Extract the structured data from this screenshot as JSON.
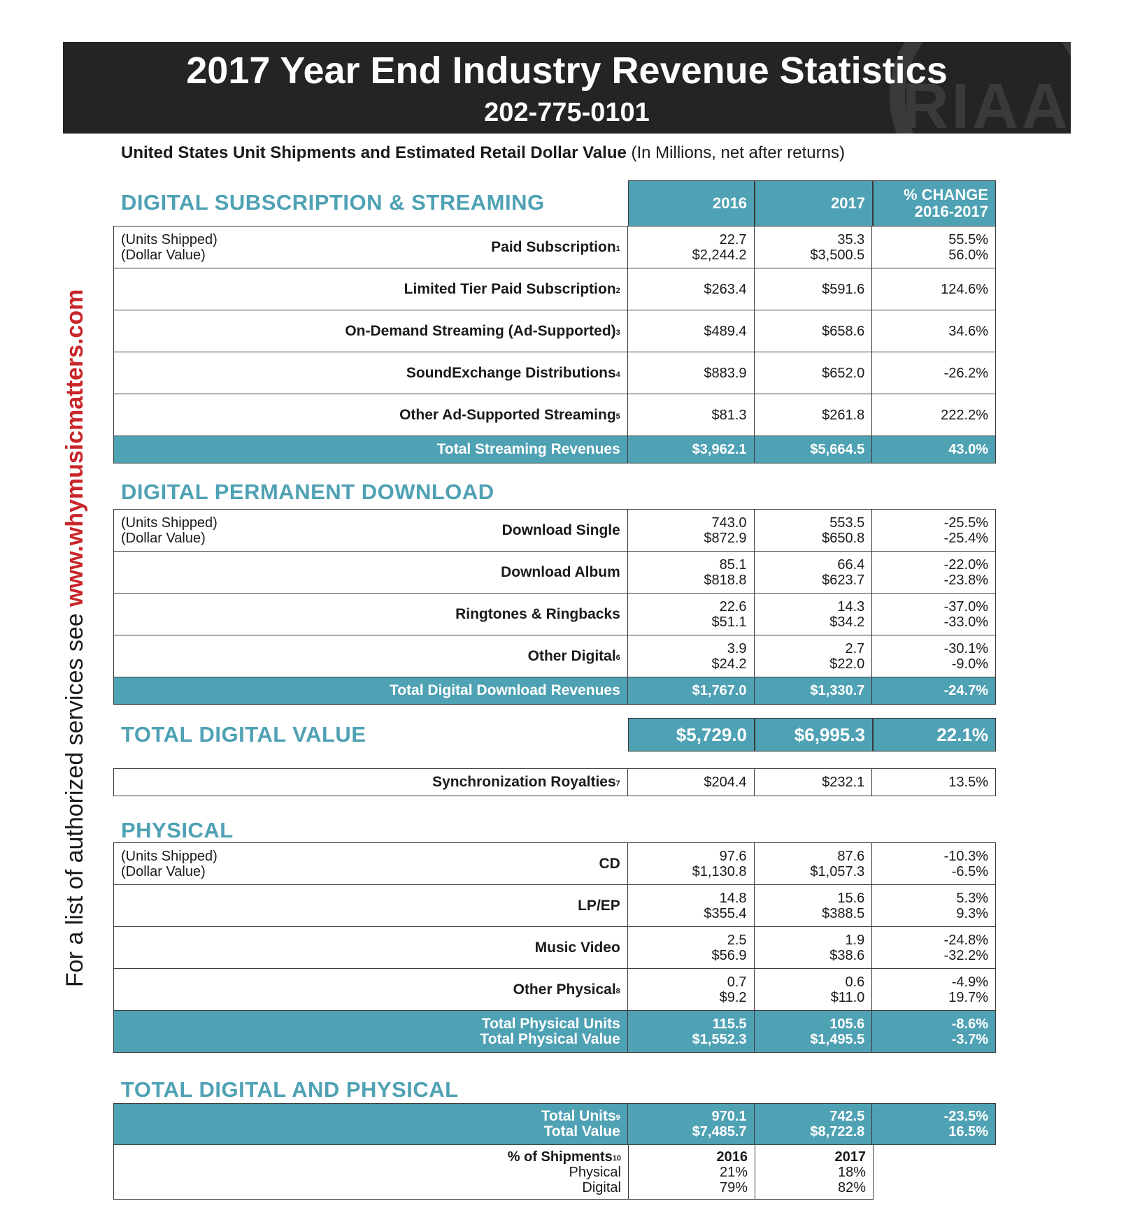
{
  "header": {
    "title": "2017 Year End Industry Revenue Statistics",
    "phone": "202-775-0101",
    "logo_text": "RIAA"
  },
  "subtitle": {
    "bold": "United States Unit Shipments and Estimated Retail Dollar Value",
    "normal": "(In Millions, net after returns)"
  },
  "side_text": {
    "prefix": "For a list of authorized services see ",
    "url": "www.whymusicmatters.com"
  },
  "columns": {
    "y2016": "2016",
    "y2017": "2017",
    "change_l1": "% CHANGE",
    "change_l2": "2016-2017"
  },
  "units_label": {
    "l1": "(Units Shipped)",
    "l2": "(Dollar Value)"
  },
  "streaming": {
    "title": "DIGITAL SUBSCRIPTION & STREAMING",
    "rows": [
      {
        "label": "Paid Subscription",
        "sup": "1",
        "v2016": [
          "22.7",
          "$2,244.2"
        ],
        "v2017": [
          "35.3",
          "$3,500.5"
        ],
        "chg": [
          "55.5%",
          "56.0%"
        ]
      },
      {
        "label": "Limited Tier Paid Subscription",
        "sup": "2",
        "v2016": [
          "$263.4"
        ],
        "v2017": [
          "$591.6"
        ],
        "chg": [
          "124.6%"
        ]
      },
      {
        "label": "On-Demand Streaming (Ad-Supported)",
        "sup": "3",
        "v2016": [
          "$489.4"
        ],
        "v2017": [
          "$658.6"
        ],
        "chg": [
          "34.6%"
        ]
      },
      {
        "label": "SoundExchange Distributions",
        "sup": "4",
        "v2016": [
          "$883.9"
        ],
        "v2017": [
          "$652.0"
        ],
        "chg": [
          "-26.2%"
        ]
      },
      {
        "label": "Other Ad-Supported Streaming",
        "sup": "5",
        "v2016": [
          "$81.3"
        ],
        "v2017": [
          "$261.8"
        ],
        "chg": [
          "222.2%"
        ]
      }
    ],
    "total": {
      "label": "Total Streaming Revenues",
      "v2016": "$3,962.1",
      "v2017": "$5,664.5",
      "chg": "43.0%"
    }
  },
  "download": {
    "title": "DIGITAL PERMANENT DOWNLOAD",
    "rows": [
      {
        "label": "Download Single",
        "sup": "",
        "v2016": [
          "743.0",
          "$872.9"
        ],
        "v2017": [
          "553.5",
          "$650.8"
        ],
        "chg": [
          "-25.5%",
          "-25.4%"
        ]
      },
      {
        "label": "Download Album",
        "sup": "",
        "v2016": [
          "85.1",
          "$818.8"
        ],
        "v2017": [
          "66.4",
          "$623.7"
        ],
        "chg": [
          "-22.0%",
          "-23.8%"
        ]
      },
      {
        "label": "Ringtones & Ringbacks",
        "sup": "",
        "v2016": [
          "22.6",
          "$51.1"
        ],
        "v2017": [
          "14.3",
          "$34.2"
        ],
        "chg": [
          "-37.0%",
          "-33.0%"
        ]
      },
      {
        "label": "Other Digital",
        "sup": "6",
        "v2016": [
          "3.9",
          "$24.2"
        ],
        "v2017": [
          "2.7",
          "$22.0"
        ],
        "chg": [
          "-30.1%",
          "-9.0%"
        ]
      }
    ],
    "total": {
      "label": "Total Digital Download Revenues",
      "v2016": "$1,767.0",
      "v2017": "$1,330.7",
      "chg": "-24.7%"
    }
  },
  "total_digital": {
    "title": "TOTAL DIGITAL VALUE",
    "v2016": "$5,729.0",
    "v2017": "$6,995.3",
    "chg": "22.1%"
  },
  "sync": {
    "label": "Synchronization Royalties",
    "sup": "7",
    "v2016": "$204.4",
    "v2017": "$232.1",
    "chg": "13.5%"
  },
  "physical": {
    "title": "PHYSICAL",
    "rows": [
      {
        "label": "CD",
        "sup": "",
        "v2016": [
          "97.6",
          "$1,130.8"
        ],
        "v2017": [
          "87.6",
          "$1,057.3"
        ],
        "chg": [
          "-10.3%",
          "-6.5%"
        ]
      },
      {
        "label": "LP/EP",
        "sup": "",
        "v2016": [
          "14.8",
          "$355.4"
        ],
        "v2017": [
          "15.6",
          "$388.5"
        ],
        "chg": [
          "5.3%",
          "9.3%"
        ]
      },
      {
        "label": "Music Video",
        "sup": "",
        "v2016": [
          "2.5",
          "$56.9"
        ],
        "v2017": [
          "1.9",
          "$38.6"
        ],
        "chg": [
          "-24.8%",
          "-32.2%"
        ]
      },
      {
        "label": "Other Physical",
        "sup": "8",
        "v2016": [
          "0.7",
          "$9.2"
        ],
        "v2017": [
          "0.6",
          "$11.0"
        ],
        "chg": [
          "-4.9%",
          "19.7%"
        ]
      }
    ],
    "total": {
      "label1": "Total Physical Units",
      "label2": "Total Physical Value",
      "v2016": [
        "115.5",
        "$1,552.3"
      ],
      "v2017": [
        "105.6",
        "$1,495.5"
      ],
      "chg": [
        "-8.6%",
        "-3.7%"
      ]
    }
  },
  "grand": {
    "title": "TOTAL DIGITAL AND PHYSICAL",
    "total": {
      "label1": "Total Units",
      "sup1": "9",
      "label2": "Total Value",
      "v2016": [
        "970.1",
        "$7,485.7"
      ],
      "v2017": [
        "742.5",
        "$8,722.8"
      ],
      "chg": [
        "-23.5%",
        "16.5%"
      ]
    },
    "shipments": {
      "label": "% of Shipments",
      "sup": "10",
      "physical": "Physical",
      "digital": "Digital",
      "y2016": "2016",
      "y2017": "2017",
      "p2016": "21%",
      "d2016": "79%",
      "p2017": "18%",
      "d2017": "82%"
    }
  }
}
